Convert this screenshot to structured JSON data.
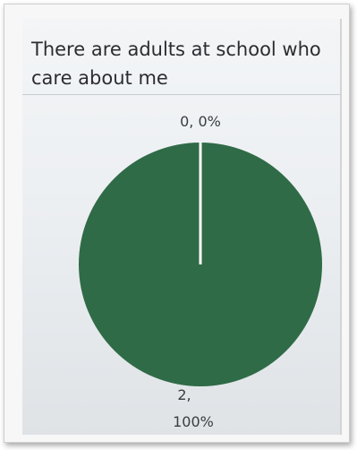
{
  "chart_data": {
    "type": "pie",
    "title": "There are adults at school who care about me",
    "title_lines": [
      "There are adults at school who",
      "care about me"
    ],
    "categories": [
      "",
      ""
    ],
    "values": [
      0,
      2
    ],
    "data_labels": [
      {
        "lines": [
          "0, 0%"
        ]
      },
      {
        "lines": [
          "2,",
          "100%"
        ]
      }
    ],
    "colors": [
      "#2f6b47",
      "#2f6b47"
    ],
    "separator_color": "#ffffff"
  }
}
